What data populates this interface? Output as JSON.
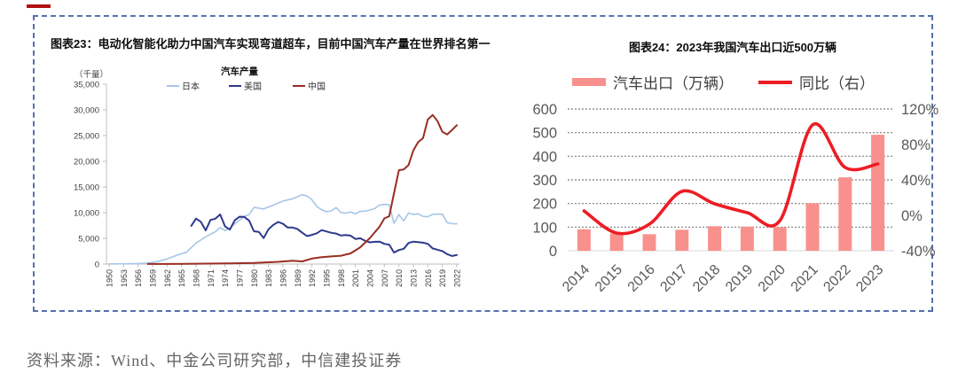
{
  "page": {
    "background": "#ffffff"
  },
  "top_left_mark_color": "#b01111",
  "panel_border_color": "#5570ad",
  "figure23": {
    "title": "图表23：电动化智能化助力中国汽车实现弯道超车，目前中国汽车产量在世界排名第一",
    "axis_unit": "（千量）",
    "legend_title": "汽车产量"
  },
  "figure24": {
    "title": "图表24：2023年我国汽车出口近500万辆"
  },
  "source_text": "资料来源：Wind、中金公司研究部，中信建投证券",
  "chart_data": [
    {
      "type": "line",
      "title": "汽车产量",
      "unit": "（千量）",
      "ylim": [
        0,
        35000
      ],
      "y_ticks": [
        "0",
        "5,000",
        "10,000",
        "15,000",
        "20,000",
        "25,000",
        "30,000",
        "35,000"
      ],
      "x_ticks": [
        1950,
        1953,
        1956,
        1959,
        1962,
        1965,
        1968,
        1971,
        1974,
        1977,
        1980,
        1983,
        1986,
        1989,
        1992,
        1995,
        1998,
        2001,
        2004,
        2007,
        2010,
        2013,
        2016,
        2019,
        2022
      ],
      "grid": "off",
      "legend_position": "top",
      "series": [
        {
          "name": "日本",
          "color": "#a6c6e8",
          "points": [
            [
              1950,
              32
            ],
            [
              1953,
              50
            ],
            [
              1956,
              111
            ],
            [
              1958,
              188
            ],
            [
              1960,
              482
            ],
            [
              1962,
              991
            ],
            [
              1964,
              1702
            ],
            [
              1966,
              2286
            ],
            [
              1968,
              4086
            ],
            [
              1970,
              5289
            ],
            [
              1972,
              6294
            ],
            [
              1973,
              7083
            ],
            [
              1974,
              6552
            ],
            [
              1975,
              6942
            ],
            [
              1976,
              7841
            ],
            [
              1977,
              8515
            ],
            [
              1978,
              9269
            ],
            [
              1979,
              9636
            ],
            [
              1980,
              11043
            ],
            [
              1982,
              10732
            ],
            [
              1984,
              11465
            ],
            [
              1986,
              12260
            ],
            [
              1988,
              12700
            ],
            [
              1990,
              13487
            ],
            [
              1991,
              13245
            ],
            [
              1992,
              12499
            ],
            [
              1993,
              11228
            ],
            [
              1994,
              10554
            ],
            [
              1995,
              10196
            ],
            [
              1996,
              10347
            ],
            [
              1997,
              10975
            ],
            [
              1998,
              10050
            ],
            [
              1999,
              9895
            ],
            [
              2000,
              10141
            ],
            [
              2001,
              9777
            ],
            [
              2002,
              10257
            ],
            [
              2003,
              10286
            ],
            [
              2004,
              10512
            ],
            [
              2005,
              10800
            ],
            [
              2006,
              11484
            ],
            [
              2007,
              11596
            ],
            [
              2008,
              11576
            ],
            [
              2009,
              7934
            ],
            [
              2010,
              9629
            ],
            [
              2011,
              8399
            ],
            [
              2012,
              9943
            ],
            [
              2013,
              9630
            ],
            [
              2014,
              9775
            ],
            [
              2015,
              9278
            ],
            [
              2016,
              9205
            ],
            [
              2017,
              9694
            ],
            [
              2018,
              9730
            ],
            [
              2019,
              9685
            ],
            [
              2020,
              8068
            ],
            [
              2021,
              7847
            ],
            [
              2022,
              7836
            ]
          ]
        },
        {
          "name": "美国",
          "color": "#2e3a8c",
          "points": [
            [
              1967,
              7437
            ],
            [
              1968,
              8849
            ],
            [
              1969,
              8224
            ],
            [
              1970,
              6550
            ],
            [
              1971,
              8584
            ],
            [
              1972,
              8828
            ],
            [
              1973,
              9658
            ],
            [
              1974,
              7325
            ],
            [
              1975,
              6713
            ],
            [
              1976,
              8498
            ],
            [
              1977,
              9214
            ],
            [
              1978,
              9177
            ],
            [
              1979,
              8434
            ],
            [
              1980,
              6376
            ],
            [
              1981,
              6253
            ],
            [
              1982,
              5049
            ],
            [
              1983,
              6781
            ],
            [
              1984,
              7621
            ],
            [
              1985,
              8185
            ],
            [
              1986,
              7829
            ],
            [
              1987,
              7099
            ],
            [
              1988,
              7110
            ],
            [
              1989,
              6823
            ],
            [
              1990,
              6078
            ],
            [
              1991,
              5440
            ],
            [
              1992,
              5664
            ],
            [
              1993,
              5981
            ],
            [
              1994,
              6601
            ],
            [
              1995,
              6340
            ],
            [
              1996,
              6083
            ],
            [
              1997,
              5927
            ],
            [
              1998,
              5554
            ],
            [
              1999,
              5638
            ],
            [
              2000,
              5542
            ],
            [
              2001,
              4879
            ],
            [
              2002,
              5019
            ],
            [
              2003,
              4510
            ],
            [
              2004,
              4230
            ],
            [
              2005,
              4321
            ],
            [
              2006,
              4366
            ],
            [
              2007,
              3924
            ],
            [
              2008,
              3777
            ],
            [
              2009,
              2246
            ],
            [
              2010,
              2731
            ],
            [
              2011,
              2966
            ],
            [
              2012,
              4106
            ],
            [
              2013,
              4369
            ],
            [
              2014,
              4253
            ],
            [
              2015,
              4163
            ],
            [
              2016,
              3934
            ],
            [
              2017,
              3033
            ],
            [
              2018,
              2796
            ],
            [
              2019,
              2512
            ],
            [
              2020,
              1927
            ],
            [
              2021,
              1563
            ],
            [
              2022,
              1752
            ]
          ]
        },
        {
          "name": "中国",
          "color": "#9a2d22",
          "points": [
            [
              1958,
              16
            ],
            [
              1962,
              20
            ],
            [
              1966,
              56
            ],
            [
              1970,
              87
            ],
            [
              1975,
              140
            ],
            [
              1980,
              222
            ],
            [
              1985,
              437
            ],
            [
              1988,
              647
            ],
            [
              1990,
              509
            ],
            [
              1992,
              1062
            ],
            [
              1994,
              1353
            ],
            [
              1996,
              1475
            ],
            [
              1998,
              1628
            ],
            [
              2000,
              2068
            ],
            [
              2002,
              3251
            ],
            [
              2004,
              5071
            ],
            [
              2006,
              7280
            ],
            [
              2007,
              8882
            ],
            [
              2008,
              9299
            ],
            [
              2009,
              13791
            ],
            [
              2010,
              18265
            ],
            [
              2011,
              18419
            ],
            [
              2012,
              19272
            ],
            [
              2013,
              22117
            ],
            [
              2014,
              23723
            ],
            [
              2015,
              24503
            ],
            [
              2016,
              28119
            ],
            [
              2017,
              29015
            ],
            [
              2018,
              27809
            ],
            [
              2019,
              25721
            ],
            [
              2020,
              25225
            ],
            [
              2021,
              26082
            ],
            [
              2022,
              27021
            ]
          ]
        }
      ]
    },
    {
      "type": "bar+line",
      "categories": [
        "2014",
        "2015",
        "2016",
        "2017",
        "2018",
        "2019",
        "2020",
        "2021",
        "2022",
        "2023"
      ],
      "bar_series": {
        "name": "汽车出口（万辆）",
        "color": "#f8918d",
        "axis": "left",
        "values": [
          91,
          73,
          70,
          89,
          104,
          102,
          100,
          201,
          311,
          491
        ]
      },
      "line_series": {
        "name": "同比（右）",
        "color": "#ed1c24",
        "axis": "right",
        "values_pct": [
          5,
          -20,
          -10,
          27,
          13,
          3,
          -6,
          102,
          54,
          58
        ]
      },
      "left_axis": {
        "min": 0,
        "max": 600,
        "ticks": [
          0,
          100,
          200,
          300,
          400,
          500,
          600
        ]
      },
      "right_axis": {
        "min": -40,
        "max": 120,
        "tick_values": [
          -40,
          0,
          40,
          80,
          120
        ],
        "ticks": [
          "-40%",
          "0%",
          "40%",
          "80%",
          "120%"
        ]
      },
      "grid": "horizontal-dashed",
      "legend_position": "top"
    }
  ]
}
